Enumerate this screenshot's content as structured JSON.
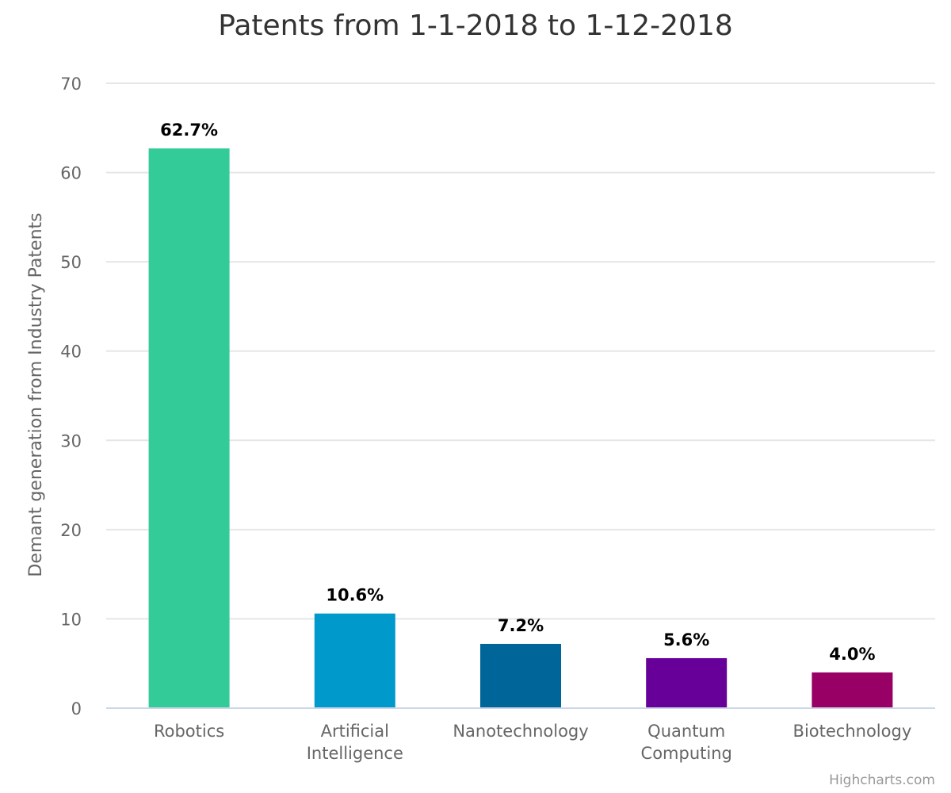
{
  "chart_data": {
    "type": "bar",
    "title": "Patents from 1-1-2018 to 1-12-2018",
    "ylabel": "Demant generation from Industry Patents",
    "xlabel": "",
    "ylim": [
      0,
      70
    ],
    "yticks": [
      0,
      10,
      20,
      30,
      40,
      50,
      60,
      70
    ],
    "categories": [
      [
        "Robotics"
      ],
      [
        "Artificial",
        "Intelligence"
      ],
      [
        "Nanotechnology"
      ],
      [
        "Quantum",
        "Computing"
      ],
      [
        "Biotechnology"
      ]
    ],
    "values": [
      62.7,
      10.6,
      7.2,
      5.6,
      4.0
    ],
    "data_labels": [
      "62.7%",
      "10.6%",
      "7.2%",
      "5.6%",
      "4.0%"
    ],
    "colors": [
      "#33cc99",
      "#0099cc",
      "#006699",
      "#660099",
      "#990066"
    ],
    "grid": true,
    "legend": "none"
  },
  "credits": "Highcharts.com"
}
